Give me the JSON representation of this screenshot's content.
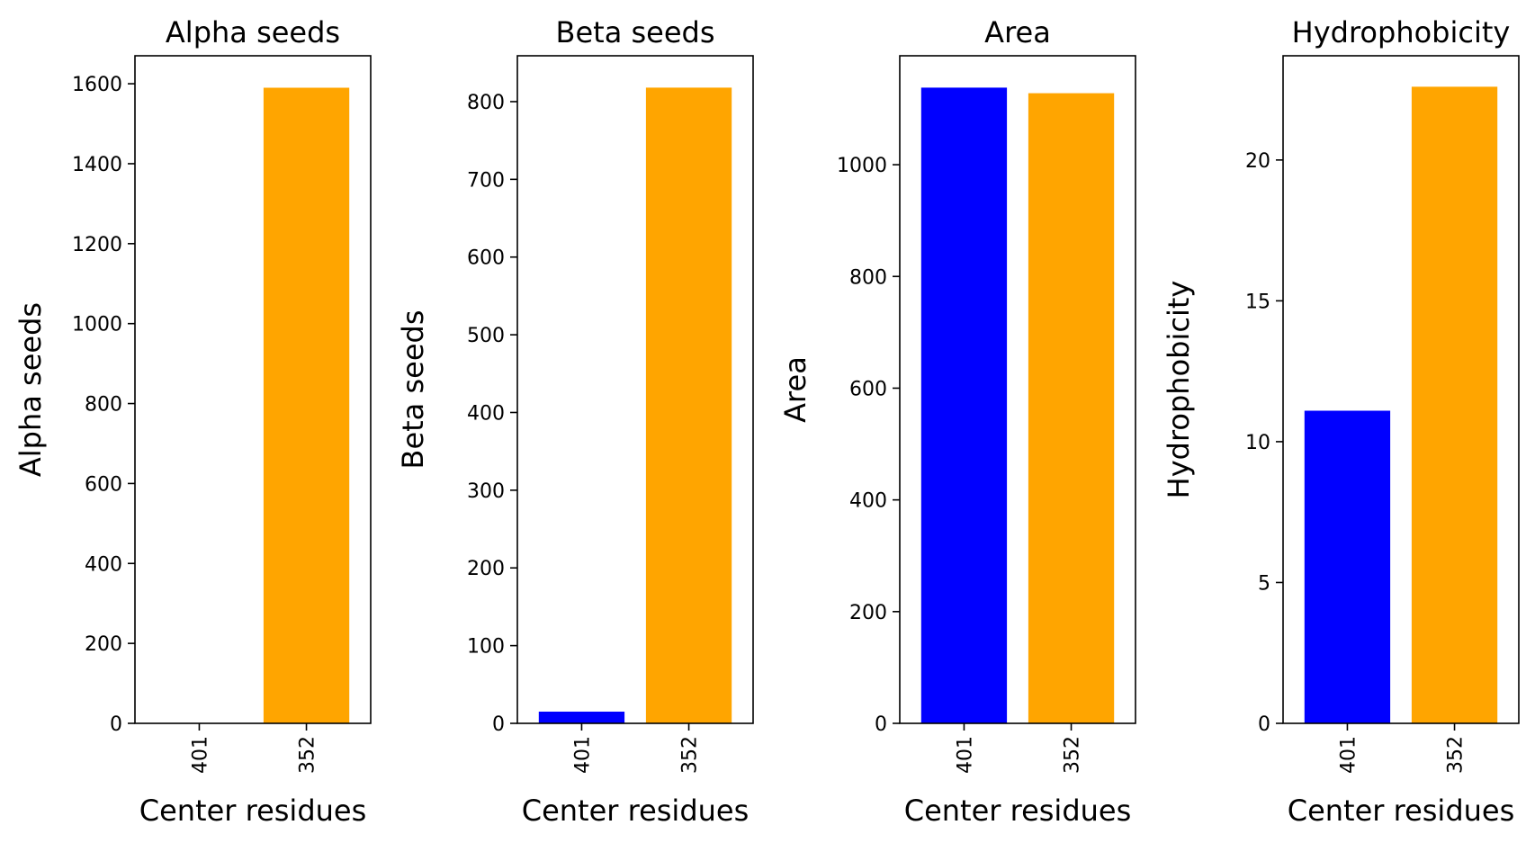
{
  "chart_data": [
    {
      "type": "bar",
      "title": "Alpha seeds",
      "xlabel": "Center residues",
      "ylabel": "Alpha seeds",
      "categories": [
        "401",
        "352"
      ],
      "values": [
        0,
        1590
      ],
      "bar_colors": [
        "#0000ff",
        "#ffa500"
      ],
      "ylim": [
        0,
        1670
      ],
      "yticks": [
        0,
        200,
        400,
        600,
        800,
        1000,
        1200,
        1400,
        1600
      ],
      "grid": false,
      "legend": "none"
    },
    {
      "type": "bar",
      "title": "Beta seeds",
      "xlabel": "Center residues",
      "ylabel": "Beta seeds",
      "categories": [
        "401",
        "352"
      ],
      "values": [
        15,
        818
      ],
      "bar_colors": [
        "#0000ff",
        "#ffa500"
      ],
      "ylim": [
        0,
        859
      ],
      "yticks": [
        0,
        100,
        200,
        300,
        400,
        500,
        600,
        700,
        800
      ],
      "grid": false,
      "legend": "none"
    },
    {
      "type": "bar",
      "title": "Area",
      "xlabel": "Center residues",
      "ylabel": "Area",
      "categories": [
        "401",
        "352"
      ],
      "values": [
        1138,
        1128
      ],
      "bar_colors": [
        "#0000ff",
        "#ffa500"
      ],
      "ylim": [
        0,
        1195
      ],
      "yticks": [
        0,
        200,
        400,
        600,
        800,
        1000
      ],
      "grid": false,
      "legend": "none"
    },
    {
      "type": "bar",
      "title": "Hydrophobicity",
      "xlabel": "Center residues",
      "ylabel": "Hydrophobicity",
      "categories": [
        "401",
        "352"
      ],
      "values": [
        11.1,
        22.6
      ],
      "bar_colors": [
        "#0000ff",
        "#ffa500"
      ],
      "ylim": [
        0,
        23.7
      ],
      "yticks": [
        0,
        5,
        10,
        15,
        20
      ],
      "grid": false,
      "legend": "none"
    }
  ]
}
